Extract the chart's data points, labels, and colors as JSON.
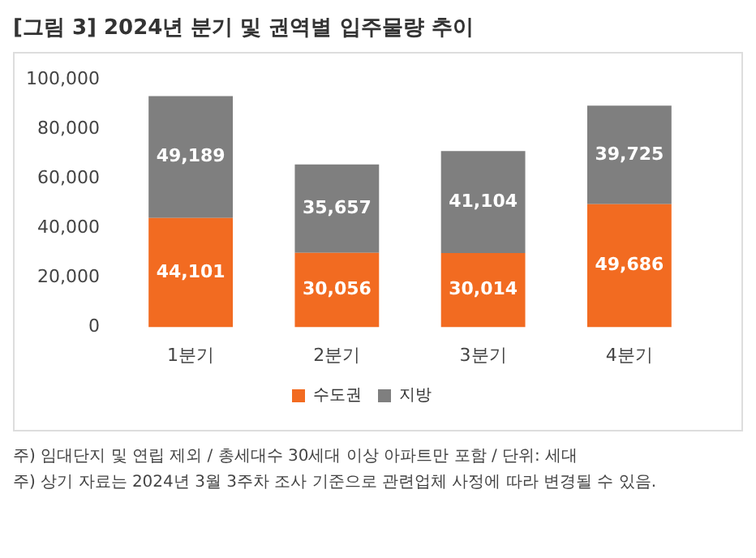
{
  "chart_data": {
    "type": "bar",
    "title": "[그림 3] 2024년 분기 및 권역별 입주물량 추이",
    "categories": [
      "1분기",
      "2분기",
      "3분기",
      "4분기"
    ],
    "series": [
      {
        "name": "수도권",
        "color": "#f26b21",
        "values": [
          44101,
          30056,
          30014,
          49686
        ],
        "value_labels": [
          "44,101",
          "30,056",
          "30,014",
          "49,686"
        ]
      },
      {
        "name": "지방",
        "color": "#7f7f7f",
        "values": [
          49189,
          35657,
          41104,
          39725
        ],
        "value_labels": [
          "49,189",
          "35,657",
          "41,104",
          "39,725"
        ]
      }
    ],
    "stacked": true,
    "ylim": [
      0,
      100000
    ],
    "yticks": [
      {
        "value": 0,
        "label": "0"
      },
      {
        "value": 20000,
        "label": "20,000"
      },
      {
        "value": 40000,
        "label": "40,000"
      },
      {
        "value": 60000,
        "label": "60,000"
      },
      {
        "value": 80000,
        "label": "80,000"
      },
      {
        "value": 100000,
        "label": "100,000"
      }
    ],
    "grid": false,
    "legend": "bottom",
    "annotations": [
      "주) 임대단지 및 연립 제외 / 총세대수 30세대 이상 아파트만 포함 / 단위: 세대",
      "주) 상기 자료는 2024년 3월 3주차 조사 기준으로 관련업체 사정에 따라 변경될 수 있음."
    ]
  }
}
